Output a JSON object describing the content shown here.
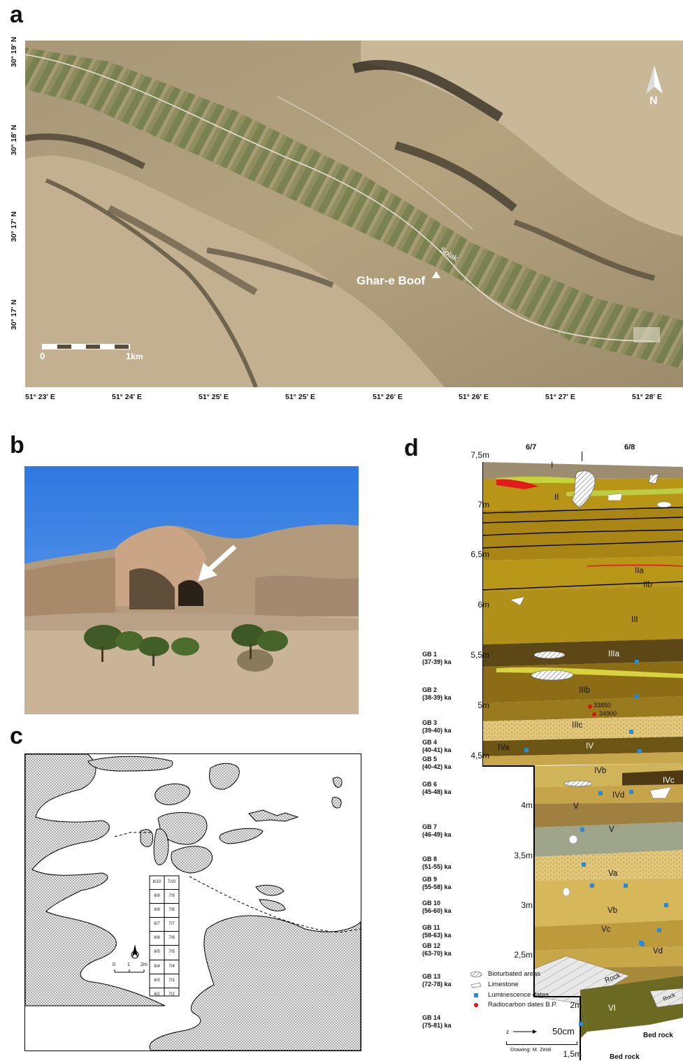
{
  "panels": {
    "a": "a",
    "b": "b",
    "c": "c",
    "d": "d"
  },
  "map": {
    "site_label": "Ghar-e Boof",
    "river_label": "Solak",
    "north_label": "N",
    "scale_start": "0",
    "scale_end": "1",
    "scale_unit": "km",
    "lat_labels": [
      "30° 19' N",
      "30° 18' N",
      "30° 17' N",
      "30° 17' N"
    ],
    "lon_labels": [
      "51° 23' E",
      "51° 24' E",
      "51° 25' E",
      "51° 25' E",
      "51° 26' E",
      "51° 26' E",
      "51° 27' E",
      "51° 28' E"
    ]
  },
  "plan": {
    "grid": [
      [
        "6/10",
        "7/10"
      ],
      [
        "6/9",
        "7/9"
      ],
      [
        "6/8",
        "7/8"
      ],
      [
        "6/7",
        "7/7"
      ],
      [
        "6/6",
        "7/6"
      ],
      [
        "6/5",
        "7/5"
      ],
      [
        "6/4",
        "7/4"
      ],
      [
        "6/3",
        "7/3"
      ],
      [
        "6/2",
        "7/2"
      ]
    ],
    "scale_labels": [
      "0",
      "1",
      "2",
      "m"
    ]
  },
  "section": {
    "col_left": "6/7",
    "col_right": "6/8",
    "depths": [
      "7,5m",
      "7m",
      "6,5m",
      "6m",
      "5,5m",
      "5m",
      "4,5m",
      "4m",
      "3,5m",
      "3m",
      "2,5m",
      "2m",
      "1,5m"
    ],
    "gb": [
      {
        "name": "GB 1",
        "age": "(37-39) ka"
      },
      {
        "name": "GB 2",
        "age": "(38-39) ka"
      },
      {
        "name": "GB 3",
        "age": "(39-40) ka"
      },
      {
        "name": "GB 4",
        "age": "(40-41) ka"
      },
      {
        "name": "GB 5",
        "age": "(40-42) ka"
      },
      {
        "name": "GB 6",
        "age": "(45-48) ka"
      },
      {
        "name": "GB 7",
        "age": "(46-49) ka"
      },
      {
        "name": "GB 8",
        "age": "(51-55) ka"
      },
      {
        "name": "GB 9",
        "age": "(55-58) ka"
      },
      {
        "name": "GB 10",
        "age": "(56-60) ka"
      },
      {
        "name": "GB 11",
        "age": "(58-63) ka"
      },
      {
        "name": "GB 12",
        "age": "(63-70) ka"
      },
      {
        "name": "GB 13",
        "age": "(72-78) ka"
      },
      {
        "name": "GB 14",
        "age": "(75-81) ka"
      }
    ],
    "layers": [
      "I",
      "II",
      "IIa",
      "IIb",
      "III",
      "IIIa",
      "IIIb",
      "IIIc",
      "IVa",
      "IV",
      "IVb",
      "IVc",
      "IVd",
      "V",
      "V",
      "Va",
      "Vb",
      "Vc",
      "Vd",
      "VI"
    ],
    "dates": [
      "33850",
      "34900"
    ],
    "rock_labels": [
      "Rock",
      "Rock",
      "Bed rock",
      "Bed rock"
    ],
    "legend": {
      "bioturbated": "Bioturbated areas",
      "limestone": "Limestone",
      "luminescence": "Luminescence dates",
      "radiocarbon": "Radiocarbon dates B.P."
    },
    "scale_label": "50cm",
    "drawing_credit": "Drawing: M. Zeidi"
  },
  "colors": {
    "luminescence": "#2b8ad8",
    "radiocarbon": "#e01010",
    "sky": "#3d7fe0"
  }
}
